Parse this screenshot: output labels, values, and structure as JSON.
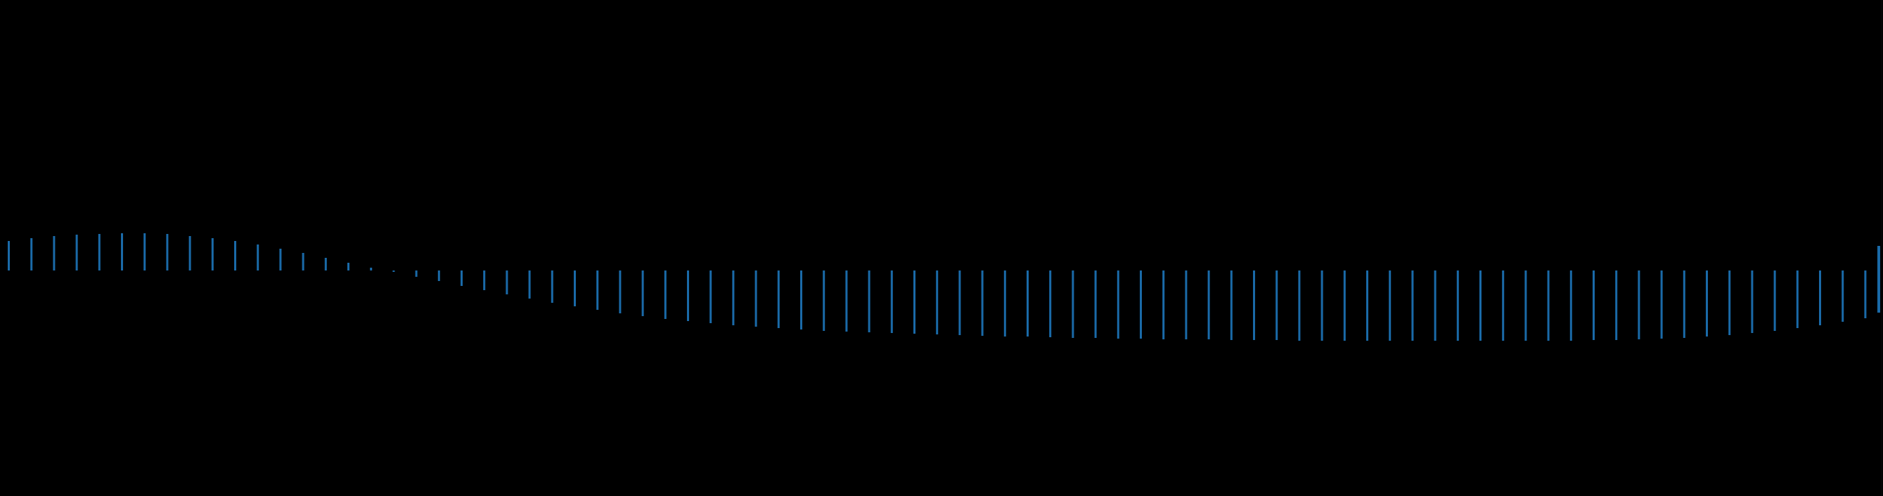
{
  "chart_data": {
    "type": "bar",
    "title": "",
    "xlabel": "",
    "ylabel": "",
    "grid": false,
    "legend": "none",
    "bar_color": "#1a6aa8",
    "background_color": "#000000",
    "divider_color": "#1e1e1e",
    "baseline_y_value": 0,
    "ylim": [
      -1.0,
      1.0
    ],
    "xlim": [
      0,
      84
    ],
    "values": [
      0.42,
      0.46,
      0.49,
      0.51,
      0.52,
      0.53,
      0.53,
      0.52,
      0.49,
      0.46,
      0.42,
      0.37,
      0.31,
      0.25,
      0.18,
      0.11,
      0.04,
      -0.02,
      -0.09,
      -0.15,
      -0.22,
      -0.28,
      -0.34,
      -0.4,
      -0.46,
      -0.51,
      -0.56,
      -0.61,
      -0.65,
      -0.69,
      -0.72,
      -0.75,
      -0.78,
      -0.8,
      -0.82,
      -0.84,
      -0.86,
      -0.87,
      -0.88,
      -0.89,
      -0.9,
      -0.91,
      -0.92,
      -0.93,
      -0.94,
      -0.94,
      -0.95,
      -0.96,
      -0.96,
      -0.97,
      -0.97,
      -0.98,
      -0.98,
      -0.98,
      -0.99,
      -0.99,
      -0.99,
      -1.0,
      -1.0,
      -1.0,
      -1.0,
      -1.0,
      -1.0,
      -1.0,
      -1.0,
      -1.0,
      -1.0,
      -1.0,
      -1.0,
      -1.0,
      -0.99,
      -0.99,
      -0.98,
      -0.97,
      -0.96,
      -0.94,
      -0.92,
      -0.89,
      -0.86,
      -0.82,
      -0.78,
      -0.73,
      -0.68,
      -0.64
    ],
    "end_marker_value": 1.0
  }
}
